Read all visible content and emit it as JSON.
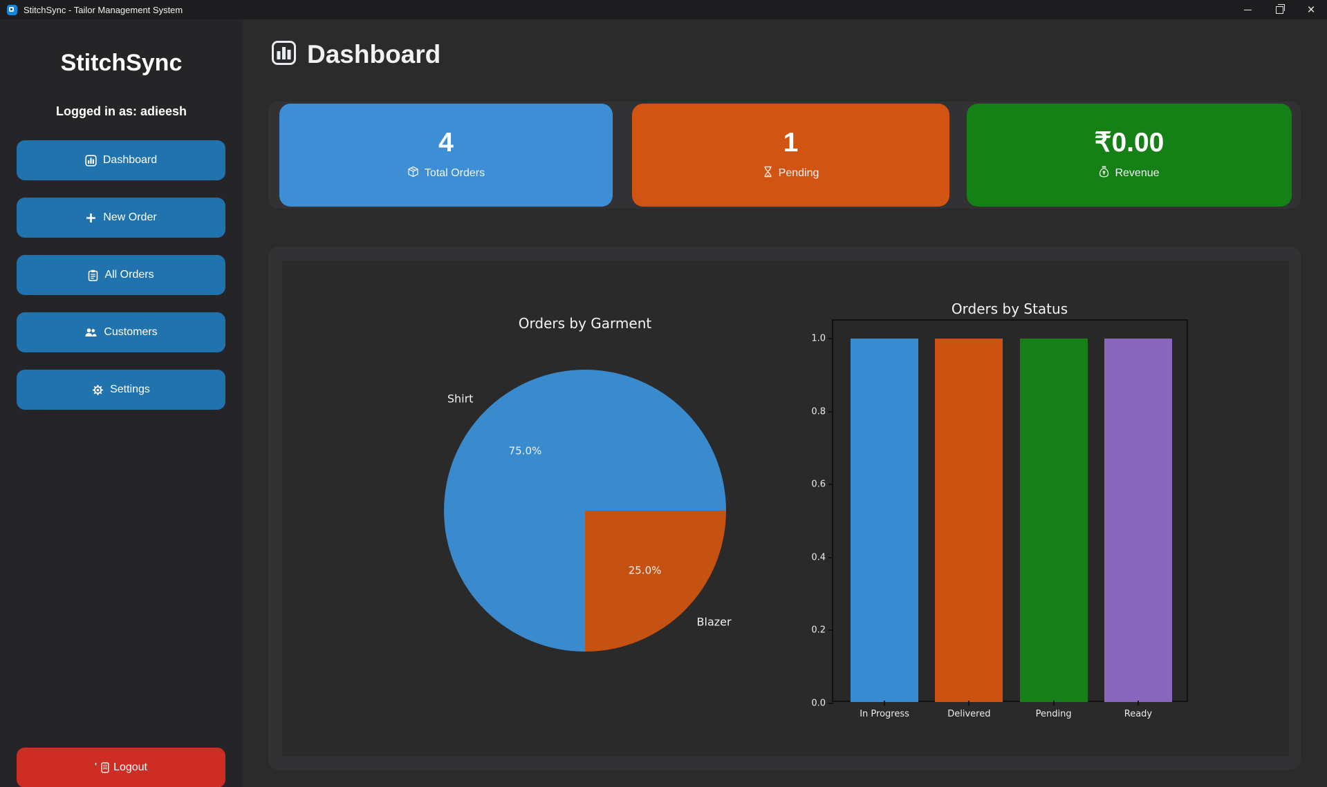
{
  "window": {
    "title": "StitchSync - Tailor Management System",
    "controls": {
      "minimize": "minimize-icon",
      "restore": "restore-icon",
      "close_glyph": "×"
    }
  },
  "sidebar": {
    "brand": "StitchSync",
    "logged_in": "Logged in as: adieesh",
    "items": [
      {
        "label": "Dashboard",
        "icon": "bar-chart-icon"
      },
      {
        "label": "New Order",
        "icon": "plus-icon"
      },
      {
        "label": "All Orders",
        "icon": "clipboard-icon"
      },
      {
        "label": "Customers",
        "icon": "users-icon"
      },
      {
        "label": "Settings",
        "icon": "gear-icon"
      }
    ],
    "logout": {
      "prefix": "'",
      "label": "Logout",
      "icon": "door-icon",
      "color": "#ce2d24"
    }
  },
  "header": {
    "title": "Dashboard",
    "icon": "bar-chart-icon"
  },
  "stats": [
    {
      "value": "4",
      "label": "Total Orders",
      "icon": "package-icon",
      "color": "#3e8ed5"
    },
    {
      "value": "1",
      "label": "Pending",
      "icon": "hourglass-icon",
      "color": "#d25413"
    },
    {
      "value": "₹0.00",
      "label": "Revenue",
      "icon": "money-bag-icon",
      "color": "#148016"
    }
  ],
  "chart_data": [
    {
      "type": "pie",
      "title": "Orders by Garment",
      "labels": [
        "Shirt",
        "Blazer"
      ],
      "values": [
        75.0,
        25.0
      ],
      "pct_labels": [
        "75.0%",
        "25.0%"
      ],
      "colors": [
        "#3a8bce",
        "#c65211"
      ],
      "start_angle_deg": 0,
      "direction": "counterclockwise"
    },
    {
      "type": "bar",
      "title": "Orders by Status",
      "categories": [
        "In Progress",
        "Delivered",
        "Pending",
        "Ready"
      ],
      "values": [
        1,
        1,
        1,
        1
      ],
      "colors": [
        "#3a8cd2",
        "#cc5212",
        "#177f17",
        "#8a67be"
      ],
      "ylim": [
        0.0,
        1.0
      ],
      "yticks": [
        "0.0",
        "0.2",
        "0.4",
        "0.6",
        "0.8",
        "1.0"
      ],
      "grid": false,
      "legend": "none"
    }
  ]
}
